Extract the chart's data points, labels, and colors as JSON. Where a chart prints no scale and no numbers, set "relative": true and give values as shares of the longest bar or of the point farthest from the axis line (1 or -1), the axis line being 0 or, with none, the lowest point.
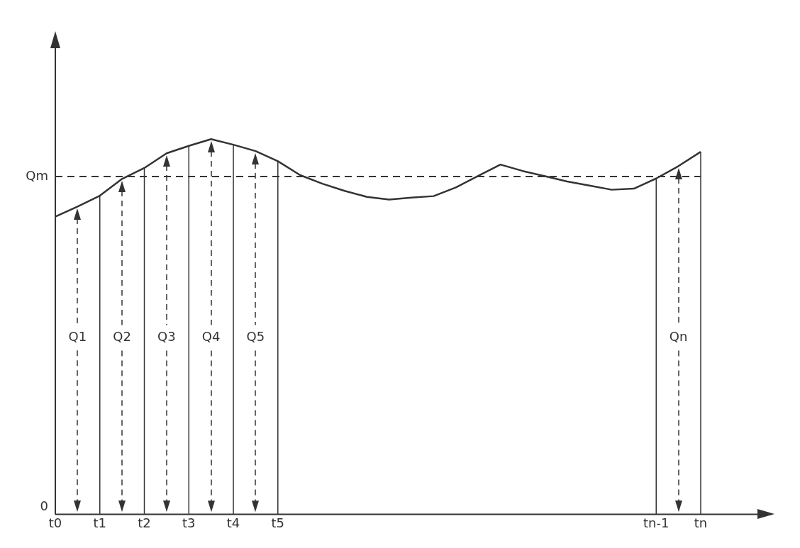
{
  "chart_data": {
    "type": "line",
    "relative": true,
    "grid": "x",
    "categories": [
      "t0",
      null,
      "t1",
      null,
      "t2",
      null,
      "t3",
      null,
      "t4",
      null,
      "t5",
      null,
      null,
      null,
      null,
      null,
      null,
      null,
      null,
      null,
      null,
      null,
      null,
      null,
      null,
      null,
      null,
      "tn-1",
      null,
      "tn"
    ],
    "color": "#333333",
    "values": [
      0.793,
      0.82,
      0.849,
      0.894,
      0.923,
      0.962,
      0.982,
      1.0,
      0.985,
      0.968,
      0.941,
      0.904,
      0.881,
      0.862,
      0.846,
      0.839,
      0.844,
      0.848,
      0.871,
      0.902,
      0.932,
      0.915,
      0.901,
      0.887,
      0.876,
      0.865,
      0.868,
      0.895,
      0.928,
      0.966
    ],
    "ref_lines": [
      {
        "axis": "y",
        "value": 0.9,
        "label": "Qm",
        "color": "#333333",
        "line_style": "dashed"
      }
    ],
    "annotations": [
      "0",
      "Q1",
      "Q2",
      "Q3",
      "Q4",
      "Q5",
      "Qn"
    ]
  }
}
